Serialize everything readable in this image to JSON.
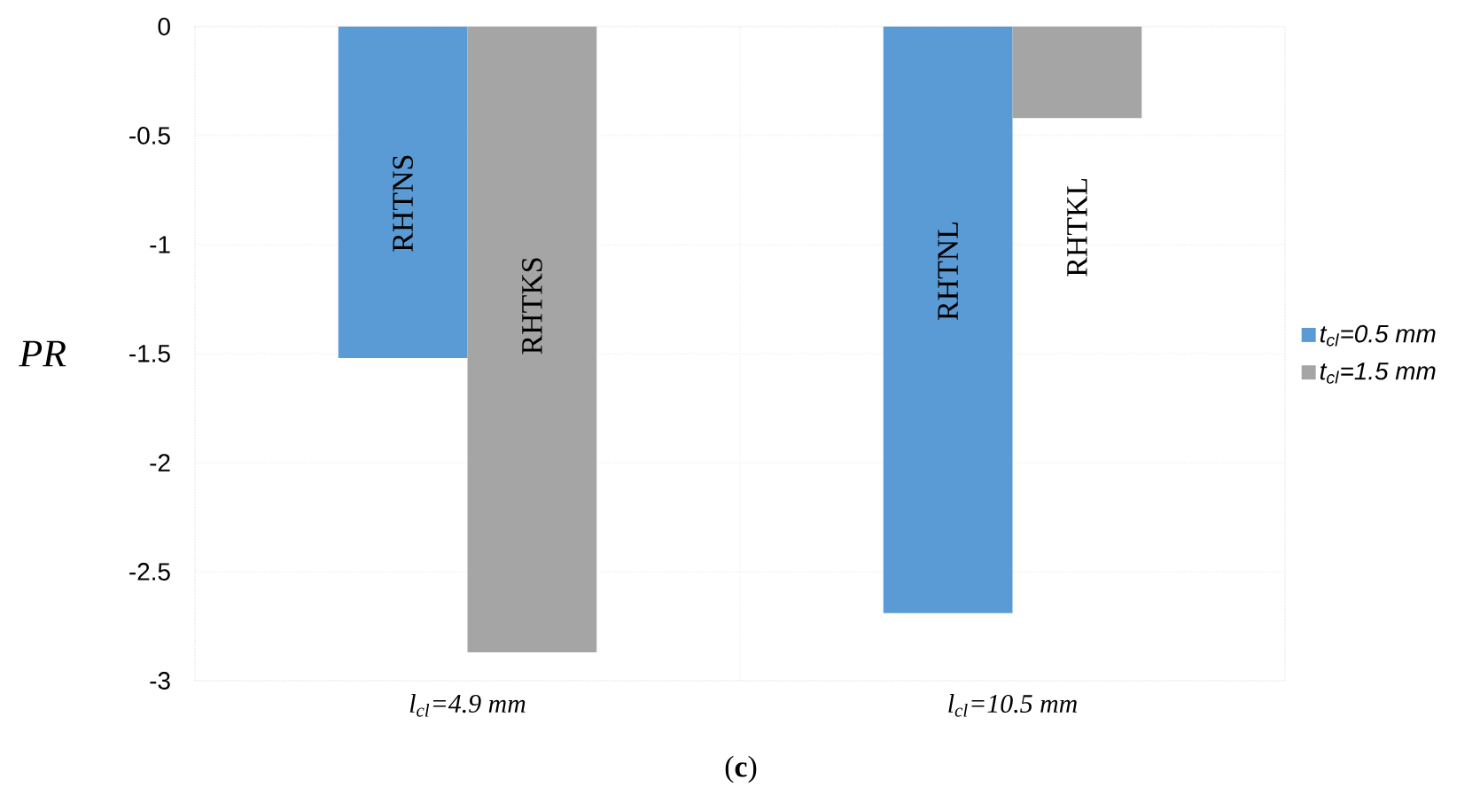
{
  "chart_data": {
    "type": "bar",
    "ylabel": "PR",
    "categories": [
      "l$_{cl}$=4.9 mm",
      "l$_{cl}$=10.5 mm"
    ],
    "series": [
      {
        "name": "t$_{cl}$=0.5 mm",
        "color": "#5b9bd5",
        "values": [
          -1.52,
          -2.69
        ]
      },
      {
        "name": "t$_{cl}$=1.5 mm",
        "color": "#a5a5a5",
        "values": [
          -2.87,
          -0.42
        ]
      }
    ],
    "ylim": [
      -3,
      0
    ],
    "yticks": [
      -3,
      -2.5,
      -2,
      -1.5,
      -1,
      -0.5,
      0
    ],
    "grid": true,
    "legend": "right",
    "annotations": [
      {
        "text": "RHTNS",
        "x": "l$_{cl}$=4.9 mm",
        "y": -0.81
      },
      {
        "text": "RHTKS",
        "x": "l$_{cl}$=4.9 mm",
        "y": -1.28
      },
      {
        "text": "RHTNL",
        "x": "l$_{cl}$=10.5 mm",
        "y": -1.12
      },
      {
        "text": "RHTKL",
        "x": "l$_{cl}$=10.5 mm",
        "y": -0.92
      },
      "(**c**)"
    ]
  }
}
